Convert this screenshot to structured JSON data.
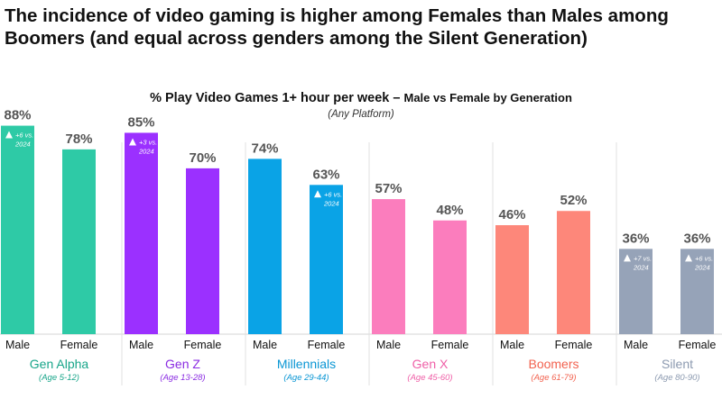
{
  "headline": "The incidence of video gaming is higher among Females than Males among Boomers (and equal across genders among the Silent Generation)",
  "chart_data": {
    "type": "bar",
    "title_main": "% Play Video Games 1+ hour per week",
    "title_sep": " – ",
    "title_rest": "Male vs Female by Generation",
    "subtitle": "(Any Platform)",
    "ylim": [
      0,
      100
    ],
    "value_suffix": "%",
    "bar_labels": [
      "Male",
      "Female"
    ],
    "groups": [
      {
        "name": "Gen Alpha",
        "age": "(Age 5-12)",
        "color": "#2ecaa6",
        "name_color": "#17a589",
        "age_color": "#17a589",
        "values": [
          88,
          78
        ],
        "notes": [
          "+6 vs. 2024",
          ""
        ]
      },
      {
        "name": "Gen Z",
        "age": "(Age 13-28)",
        "color": "#9b30ff",
        "name_color": "#8a2be2",
        "age_color": "#8a2be2",
        "values": [
          85,
          70
        ],
        "notes": [
          "+3 vs. 2024",
          ""
        ]
      },
      {
        "name": "Millennials",
        "age": "(Age 29-44)",
        "color": "#0aa3e6",
        "name_color": "#0a96d4",
        "age_color": "#0a96d4",
        "values": [
          74,
          63
        ],
        "notes": [
          "",
          "+6 vs. 2024"
        ]
      },
      {
        "name": "Gen X",
        "age": "(Age 45-60)",
        "color": "#fb7dbd",
        "name_color": "#ef5fa7",
        "age_color": "#ef5fa7",
        "values": [
          57,
          48
        ],
        "notes": [
          "",
          ""
        ]
      },
      {
        "name": "Boomers",
        "age": "(Age 61-79)",
        "color": "#fd877a",
        "name_color": "#f2624f",
        "age_color": "#f2624f",
        "values": [
          46,
          52
        ],
        "notes": [
          "",
          ""
        ]
      },
      {
        "name": "Silent",
        "age": "(Age 80-90)",
        "color": "#96a3b8",
        "name_color": "#8c9ab0",
        "age_color": "#8c9ab0",
        "values": [
          36,
          36
        ],
        "notes": [
          "+7 vs. 2024",
          "+6 vs. 2024"
        ]
      }
    ]
  }
}
